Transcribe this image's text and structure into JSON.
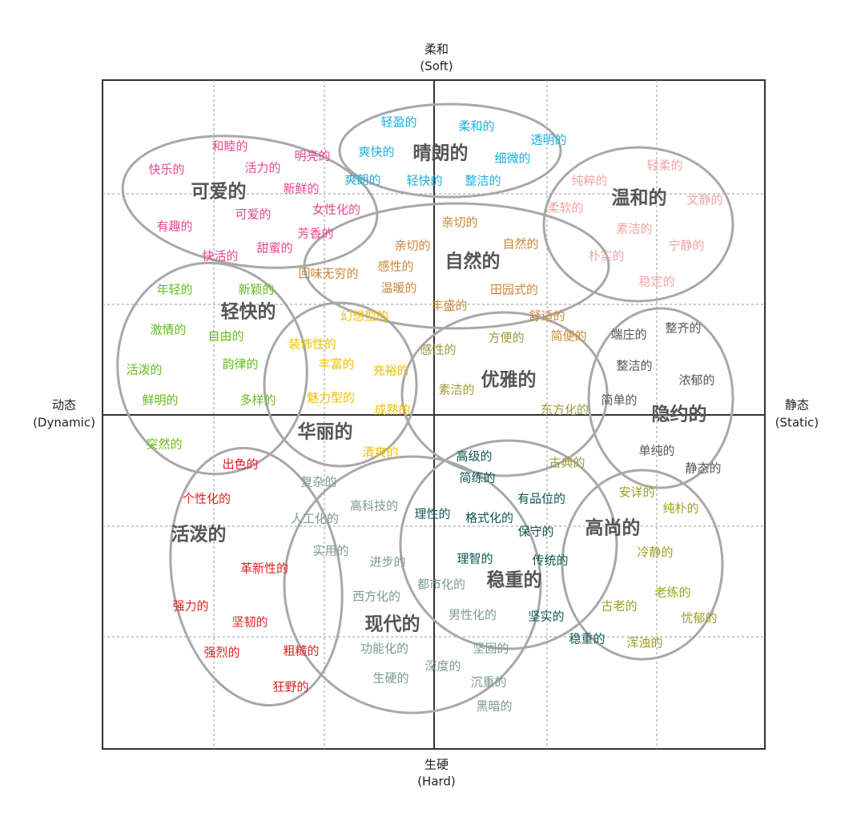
{
  "axes": {
    "top": {
      "label": "柔和",
      "english": "(Soft)"
    },
    "bottom": {
      "label": "生硬",
      "english": "(Hard)"
    },
    "left": {
      "label": "动态",
      "english": "(Dynamic)"
    },
    "right": {
      "label": "静态",
      "english": "(Static)"
    }
  },
  "groups": [
    {
      "label": "可爱的",
      "color": "#e8468e",
      "words": [
        "和睦的",
        "明亮的",
        "快乐的",
        "活力的",
        "新鲜的",
        "有趣的",
        "可爱的",
        "女性化的",
        "快活的",
        "甜蜜的",
        "芳香的"
      ]
    },
    {
      "label": "晴朗的",
      "color": "#1aaee0",
      "words": [
        "轻盈的",
        "柔和的",
        "透明的",
        "爽快的",
        "细微的",
        "爽朗的",
        "轻快的",
        "整洁的"
      ]
    },
    {
      "label": "温和的",
      "color": "#f2a4a4",
      "words": [
        "轻柔的",
        "纯粹的",
        "文静的",
        "柔软的",
        "素洁的",
        "宁静的",
        "朴实的",
        "稳定的"
      ]
    },
    {
      "label": "自然的",
      "color": "#c8873a",
      "words": [
        "亲切的",
        "亲切的",
        "自然的",
        "回味无穷的",
        "感性的",
        "温暖的",
        "田园式的",
        "丰盛的",
        "舒适的",
        "简便的"
      ]
    },
    {
      "label": "轻快的",
      "color": "#66bb1e",
      "words": [
        "年轻的",
        "新颖的",
        "激情的",
        "自由的",
        "活泼的",
        "韵律的",
        "鲜明的",
        "多样的",
        "突然的"
      ]
    },
    {
      "label": "华丽的",
      "color": "#efbf00",
      "words": [
        "幻想型的",
        "装饰性的",
        "丰富的",
        "充裕的",
        "魅力型的",
        "成熟的",
        "清爽的"
      ]
    },
    {
      "label": "优雅的",
      "color": "#9c9a3c",
      "words": [
        "方便的",
        "感性的",
        "素洁的",
        "东方化的",
        "古典的"
      ]
    },
    {
      "label": "隐约的",
      "color": "#555555",
      "words": [
        "端庄的",
        "整齐的",
        "整洁的",
        "浓郁的",
        "简单的",
        "单纯的",
        "静态的"
      ]
    },
    {
      "label": "活泼的",
      "color": "#e01e1e",
      "words": [
        "出色的",
        "个性化的",
        "革新性的",
        "强力的",
        "坚韧的",
        "强烈的",
        "粗糙的",
        "狂野的"
      ]
    },
    {
      "label": "现代的",
      "color": "#7a9a90",
      "words": [
        "复杂的",
        "高科技的",
        "人工化的",
        "实用的",
        "进步的",
        "都市化的",
        "西方化的",
        "男性化的",
        "功能化的",
        "坚固的",
        "深度的",
        "生硬的",
        "沉重的",
        "黑暗的"
      ]
    },
    {
      "label": "稳重的",
      "color": "#0e5550",
      "words": [
        "高级的",
        "简练的",
        "有品位的",
        "理性的",
        "格式化的",
        "保守的",
        "理智的",
        "传统的",
        "坚实的",
        "稳重的"
      ]
    },
    {
      "label": "高尚的",
      "color": "#9aa020",
      "words": [
        "安详的",
        "纯朴的",
        "冷静的",
        "古老的",
        "老练的",
        "忧郁的",
        "浑浊的"
      ]
    }
  ]
}
